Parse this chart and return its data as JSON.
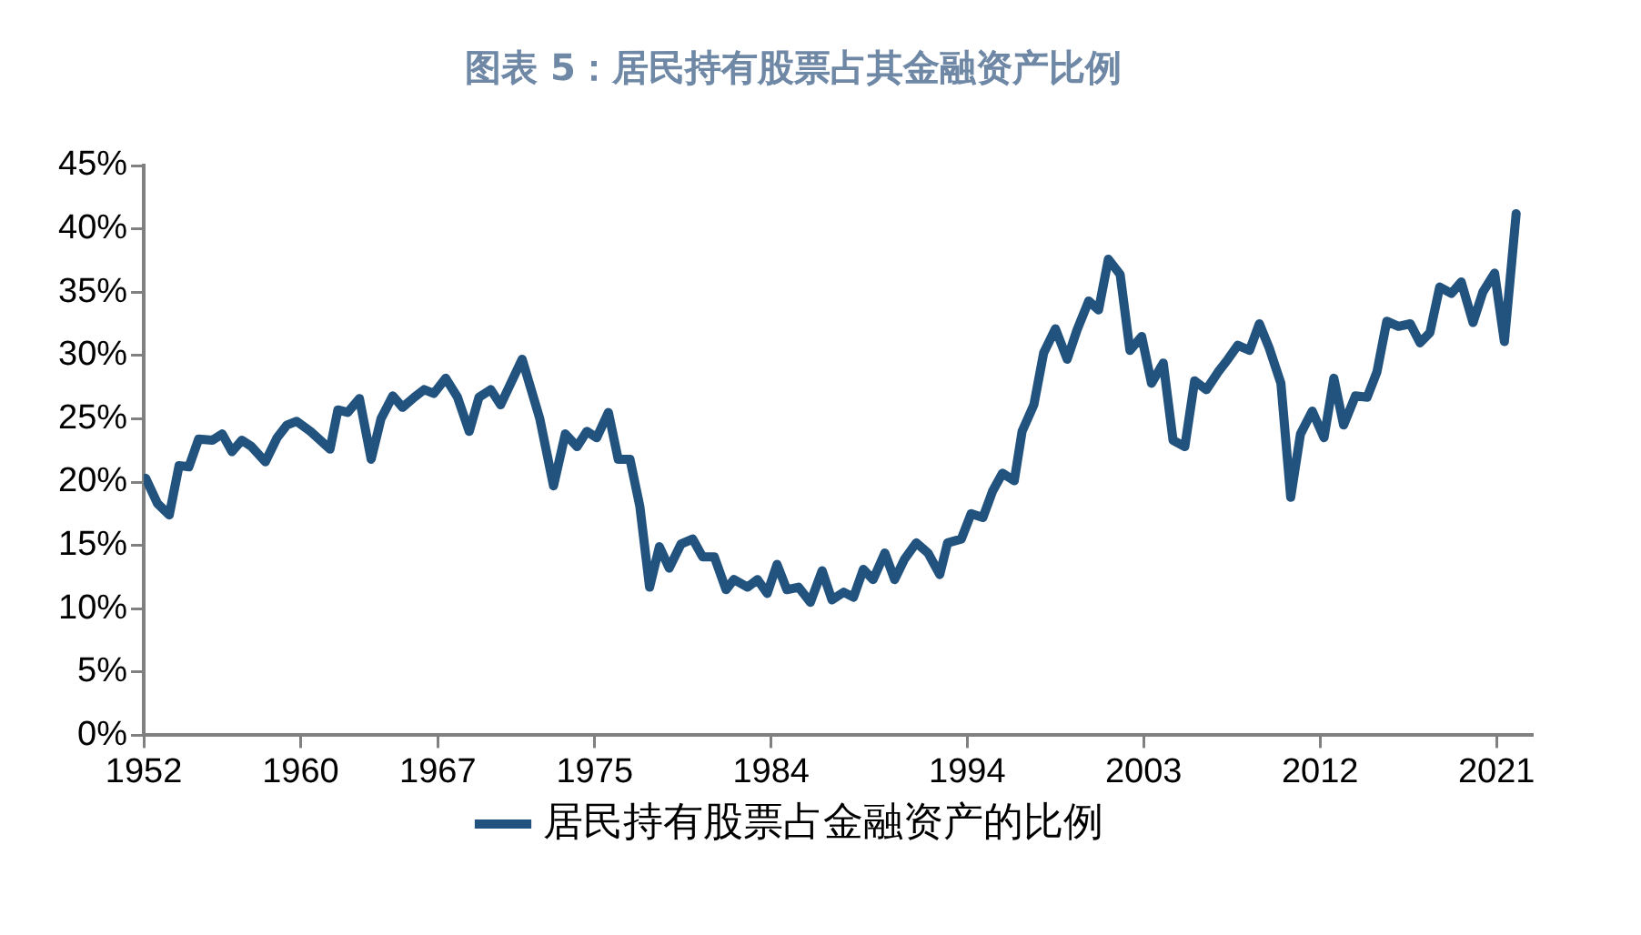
{
  "chart_data": {
    "type": "line",
    "title": "图表 5：居民持有股票占其金融资产比例",
    "x": [
      1952.1,
      1952.7,
      1953.3,
      1953.8,
      1954.3,
      1954.8,
      1955.5,
      1956.0,
      1956.5,
      1957.0,
      1957.5,
      1958.2,
      1958.8,
      1959.3,
      1959.8,
      1960.5,
      1961.5,
      1961.9,
      1962.4,
      1963.0,
      1963.6,
      1964.1,
      1964.7,
      1965.2,
      1965.8,
      1966.3,
      1966.8,
      1967.4,
      1968.0,
      1968.6,
      1969.1,
      1969.7,
      1970.2,
      1971.3,
      1972.2,
      1972.9,
      1973.5,
      1974.1,
      1974.6,
      1975.1,
      1975.7,
      1976.2,
      1976.8,
      1977.3,
      1977.8,
      1978.3,
      1978.8,
      1979.4,
      1980.0,
      1980.5,
      1981.1,
      1981.7,
      1982.1,
      1982.8,
      1983.3,
      1983.8,
      1984.3,
      1984.8,
      1985.4,
      1986.0,
      1986.6,
      1987.1,
      1987.7,
      1988.2,
      1988.7,
      1989.2,
      1989.8,
      1990.3,
      1990.8,
      1991.4,
      1992.0,
      1992.6,
      1993.0,
      1993.7,
      1994.2,
      1994.8,
      1995.3,
      1995.8,
      1996.4,
      1996.8,
      1997.4,
      1997.9,
      1998.5,
      1999.1,
      1999.6,
      2000.2,
      2000.7,
      2001.2,
      2001.8,
      2002.3,
      2002.9,
      2003.4,
      2004.0,
      2004.5,
      2005.1,
      2005.6,
      2006.2,
      2006.8,
      2007.3,
      2007.8,
      2008.4,
      2008.9,
      2009.4,
      2010.0,
      2010.5,
      2011.0,
      2011.6,
      2012.2,
      2012.7,
      2013.2,
      2013.8,
      2014.4,
      2014.9,
      2015.4,
      2016.0,
      2016.6,
      2017.1,
      2017.6,
      2018.1,
      2018.7,
      2019.2,
      2019.8,
      2020.3,
      2020.9,
      2021.4,
      2022.0
    ],
    "series": [
      {
        "name": "居民持有股票占金融资产的比例",
        "color": "#22527e",
        "values": [
          20.3,
          18.3,
          17.4,
          21.3,
          21.2,
          23.4,
          23.3,
          23.8,
          22.4,
          23.3,
          22.8,
          21.6,
          23.5,
          24.5,
          24.8,
          24,
          22.6,
          25.7,
          25.5,
          26.6,
          21.8,
          25,
          26.8,
          25.9,
          26.7,
          27.3,
          27,
          28.2,
          26.7,
          24,
          26.7,
          27.3,
          26.1,
          29.7,
          25,
          19.7,
          23.8,
          22.8,
          24,
          23.5,
          25.5,
          21.8,
          21.8,
          18.1,
          11.7,
          14.9,
          13.2,
          15.1,
          15.5,
          14.1,
          14.1,
          11.5,
          12.3,
          11.7,
          12.3,
          11.2,
          13.5,
          11.5,
          11.7,
          10.5,
          13,
          10.7,
          11.3,
          10.9,
          13.1,
          12.3,
          14.4,
          12.3,
          13.9,
          15.2,
          14.4,
          12.7,
          15.2,
          15.5,
          17.5,
          17.2,
          19.3,
          20.7,
          20.1,
          24,
          26.1,
          30.2,
          32.1,
          29.7,
          32,
          34.3,
          33.6,
          37.6,
          36.4,
          30.4,
          31.5,
          27.8,
          29.4,
          23.3,
          22.8,
          28,
          27.3,
          28.7,
          29.7,
          30.8,
          30.4,
          32.5,
          30.6,
          27.8,
          18.8,
          23.8,
          25.6,
          23.5,
          28.2,
          24.5,
          26.8,
          26.7,
          28.7,
          32.7,
          32.3,
          32.5,
          31,
          31.8,
          35.4,
          34.9,
          35.8,
          32.6,
          35,
          36.5,
          31.1,
          41.2
        ]
      }
    ],
    "xlim": [
      1952,
      2022.8
    ],
    "xticks": [
      1952,
      1960,
      1967,
      1975,
      1984,
      1994,
      2003,
      2012,
      2021
    ],
    "ylim": [
      0,
      45
    ],
    "yticks": [
      {
        "value": 0,
        "label": "0%"
      },
      {
        "value": 5,
        "label": "5%"
      },
      {
        "value": 10,
        "label": "10%"
      },
      {
        "value": 15,
        "label": "15%"
      },
      {
        "value": 20,
        "label": "20%"
      },
      {
        "value": 25,
        "label": "25%"
      },
      {
        "value": 30,
        "label": "30%"
      },
      {
        "value": 35,
        "label": "35%"
      },
      {
        "value": 40,
        "label": "40%"
      },
      {
        "value": 45,
        "label": "45%"
      }
    ],
    "grid": false,
    "legend": "bottom",
    "marker": "none",
    "line_style": "solid"
  }
}
